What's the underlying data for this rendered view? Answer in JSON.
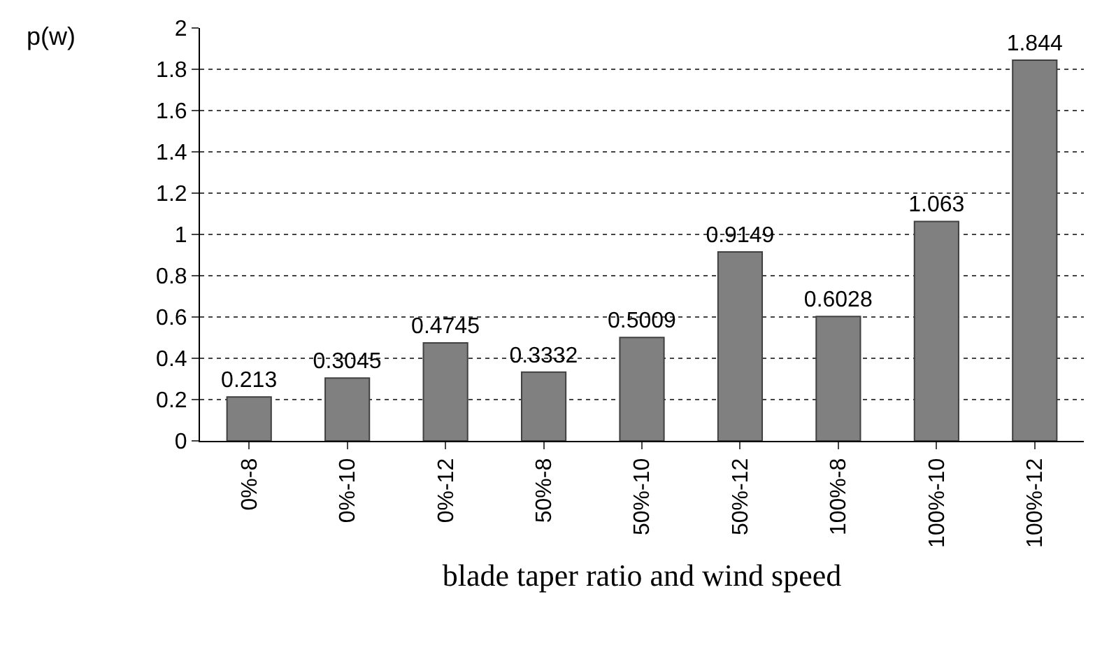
{
  "chart_data": {
    "type": "bar",
    "ylabel": "p(w)",
    "xlabel": "blade taper ratio and wind speed",
    "categories": [
      "0%-8",
      "0%-10",
      "0%-12",
      "50%-8",
      "50%-10",
      "50%-12",
      "100%-8",
      "100%-10",
      "100%-12"
    ],
    "values": [
      0.213,
      0.3045,
      0.4745,
      0.3332,
      0.5009,
      0.9149,
      0.6028,
      1.063,
      1.844
    ],
    "color": "#808080",
    "ylim": [
      0,
      2
    ],
    "yticks": [
      0,
      0.2,
      0.4,
      0.6,
      0.8,
      1,
      1.2,
      1.4,
      1.6,
      1.8,
      2
    ],
    "grid": "y",
    "data_labels": true
  }
}
